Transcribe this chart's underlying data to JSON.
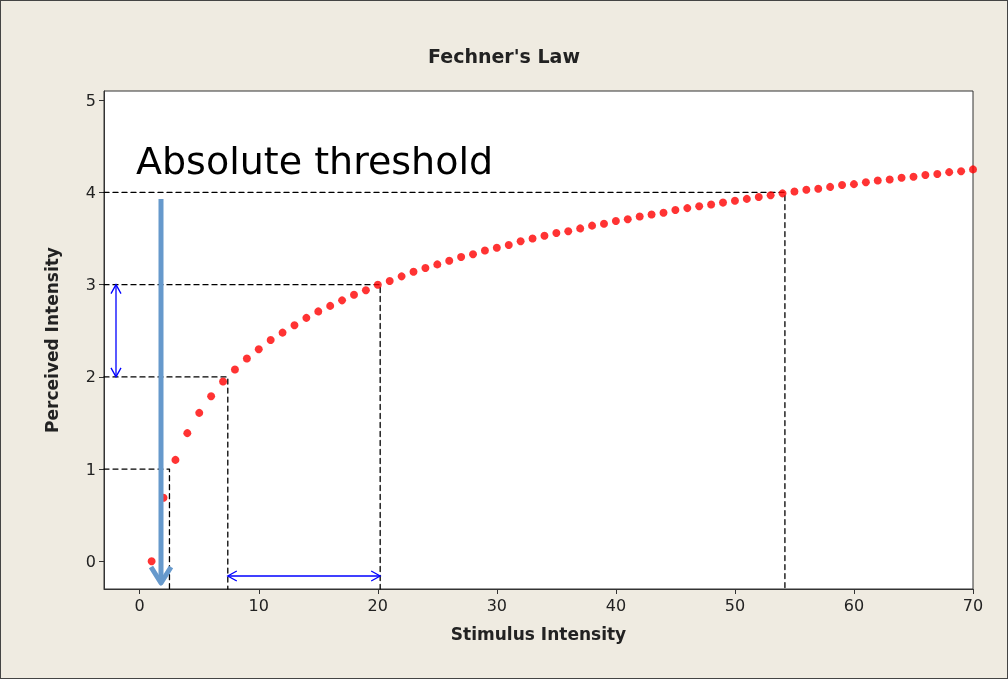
{
  "chart_data": {
    "type": "scatter",
    "title": "Fechner's Law",
    "xlabel": "Stimulus Intensity",
    "ylabel": "Perceived Intensity",
    "xlim": [
      -3,
      70
    ],
    "xticks": [
      0,
      10,
      20,
      30,
      40,
      50,
      60,
      70
    ],
    "ylim": [
      -0.3,
      5.1
    ],
    "yticks": [
      0,
      1,
      2,
      3,
      4,
      5
    ],
    "grid": false,
    "annotations": [
      "Absolute threshold"
    ],
    "series": [
      {
        "color": "#ff0000",
        "marker": "circle",
        "x": [
          1,
          2,
          3,
          4,
          5,
          6,
          7,
          8,
          9,
          10,
          11,
          12,
          13,
          14,
          15,
          16,
          17,
          18,
          19,
          20,
          21,
          22,
          23,
          24,
          25,
          26,
          27,
          28,
          29,
          30,
          31,
          32,
          33,
          34,
          35,
          36,
          37,
          38,
          39,
          40,
          41,
          42,
          43,
          44,
          45,
          46,
          47,
          48,
          49,
          50,
          51,
          52,
          53,
          54,
          55,
          56,
          57,
          58,
          59,
          60,
          61,
          62,
          63,
          64,
          65,
          66,
          67,
          68,
          69,
          70
        ],
        "values": [
          0,
          0.69,
          1.1,
          1.39,
          1.61,
          1.79,
          1.95,
          2.08,
          2.2,
          2.3,
          2.4,
          2.48,
          2.56,
          2.64,
          2.71,
          2.77,
          2.83,
          2.89,
          2.94,
          3.0,
          3.04,
          3.09,
          3.14,
          3.18,
          3.22,
          3.26,
          3.3,
          3.33,
          3.37,
          3.4,
          3.43,
          3.47,
          3.5,
          3.53,
          3.56,
          3.58,
          3.61,
          3.64,
          3.66,
          3.69,
          3.71,
          3.74,
          3.76,
          3.78,
          3.81,
          3.83,
          3.85,
          3.87,
          3.89,
          3.91,
          3.93,
          3.95,
          3.97,
          3.99,
          4.01,
          4.03,
          4.04,
          4.06,
          4.08,
          4.09,
          4.11,
          4.13,
          4.14,
          4.16,
          4.17,
          4.19,
          4.2,
          4.22,
          4.23,
          4.25
        ]
      },
      {
        "type": "line",
        "color": "#000000",
        "line_style": "dashed",
        "marker": "none",
        "x": [
          -3,
          2.5,
          2.5
        ],
        "values": [
          1,
          1,
          -0.3
        ]
      },
      {
        "type": "line",
        "color": "#000000",
        "line_style": "dashed",
        "marker": "none",
        "x": [
          -3,
          7.4,
          7.4
        ],
        "values": [
          2,
          2,
          -0.3
        ]
      },
      {
        "type": "line",
        "color": "#000000",
        "line_style": "dashed",
        "marker": "none",
        "x": [
          -3,
          20.2,
          20.2
        ],
        "values": [
          3,
          3,
          -0.3
        ]
      },
      {
        "type": "line",
        "color": "#000000",
        "line_style": "dashed",
        "marker": "none",
        "x": [
          -3,
          54.2,
          54.2
        ],
        "values": [
          4,
          4,
          -0.3
        ]
      }
    ]
  }
}
